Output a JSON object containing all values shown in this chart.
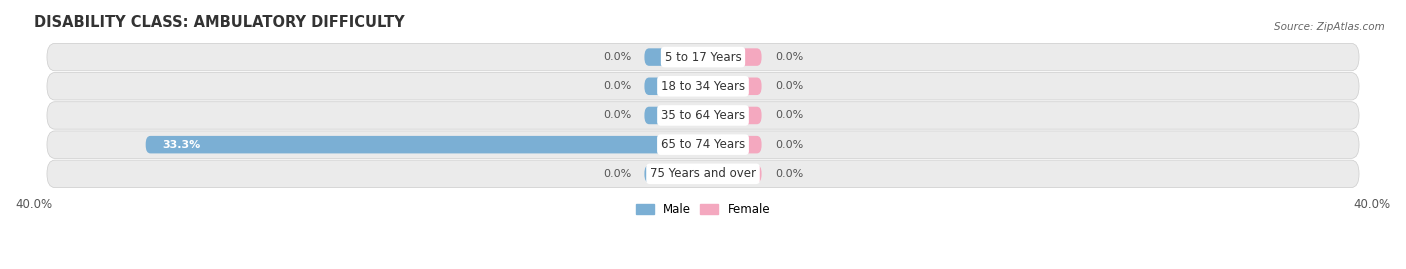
{
  "title": "DISABILITY CLASS: AMBULATORY DIFFICULTY",
  "source": "Source: ZipAtlas.com",
  "categories": [
    "5 to 17 Years",
    "18 to 34 Years",
    "35 to 64 Years",
    "65 to 74 Years",
    "75 Years and over"
  ],
  "male_values": [
    0.0,
    0.0,
    0.0,
    33.3,
    0.0
  ],
  "female_values": [
    0.0,
    0.0,
    0.0,
    0.0,
    0.0
  ],
  "male_color": "#7bafd4",
  "female_color": "#f4a8bf",
  "row_bg_color": "#ebebeb",
  "xlim": 40.0,
  "title_fontsize": 10.5,
  "label_fontsize": 8.5,
  "value_fontsize": 8.0,
  "bar_height": 0.6,
  "min_bar_width": 3.5,
  "background_color": "#ffffff"
}
